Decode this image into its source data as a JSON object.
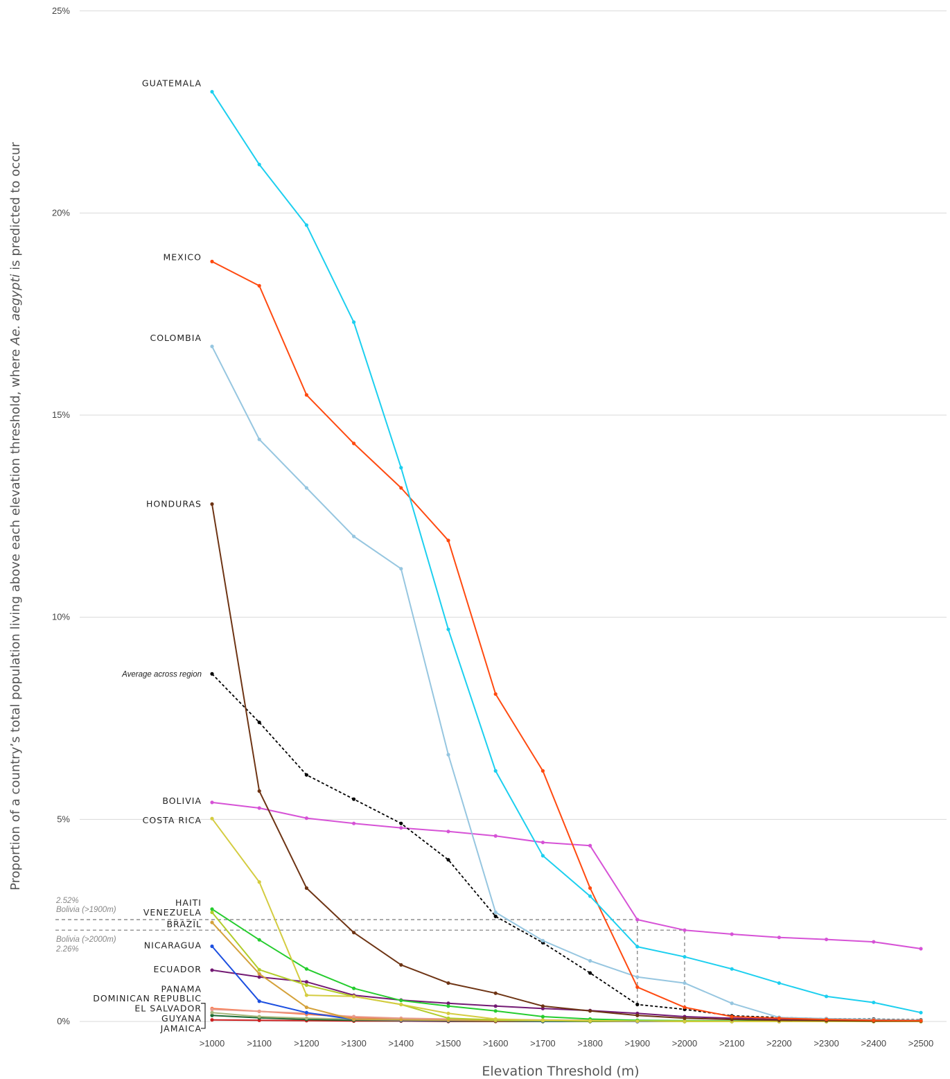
{
  "chart_data": {
    "type": "line",
    "ylabel_main": "Proportion of a country’s total population living above each elevation threshold, where ",
    "ylabel_italic": "Ae. aegypti",
    "ylabel_tail": " is predicted to occur",
    "xlabel": "Elevation Threshold (m)",
    "ylim": [
      0,
      25
    ],
    "yticks": [
      0,
      5,
      10,
      15,
      20,
      25
    ],
    "ytick_labels": [
      "0%",
      "5%",
      "10%",
      "15%",
      "20%",
      "25%"
    ],
    "grid": true,
    "categories": [
      ">1000",
      ">1100",
      ">1200",
      ">1300",
      ">1400",
      ">1500",
      ">1600",
      ">1700",
      ">1800",
      ">1900",
      ">2000",
      ">2100",
      ">2200",
      ">2300",
      ">2400",
      ">2500"
    ],
    "series": [
      {
        "name": "GUATEMALA",
        "color": "#1ccfef",
        "dashed": false,
        "label_pos": 23.2,
        "values": [
          23.0,
          21.2,
          19.7,
          17.3,
          13.7,
          9.7,
          6.2,
          4.1,
          3.1,
          1.85,
          1.6,
          1.3,
          0.95,
          0.62,
          0.47,
          0.22
        ]
      },
      {
        "name": "MEXICO",
        "color": "#ff4a10",
        "dashed": false,
        "label_pos": 18.9,
        "values": [
          18.8,
          18.2,
          15.5,
          14.3,
          13.2,
          11.9,
          8.1,
          6.2,
          3.3,
          0.85,
          0.35,
          0.12,
          0.08,
          0.05,
          0.03,
          0.02
        ]
      },
      {
        "name": "COLOMBIA",
        "color": "#96c6e0",
        "dashed": false,
        "label_pos": 16.9,
        "values": [
          16.7,
          14.4,
          13.2,
          12.0,
          11.2,
          6.6,
          2.7,
          2.0,
          1.5,
          1.1,
          0.95,
          0.45,
          0.1,
          0.07,
          0.05,
          0.03
        ]
      },
      {
        "name": "HONDURAS",
        "color": "#6e3414",
        "dashed": false,
        "label_pos": 12.8,
        "values": [
          12.8,
          5.7,
          3.3,
          2.2,
          1.4,
          0.95,
          0.7,
          0.38,
          0.26,
          0.15,
          0.08,
          0.05,
          0.03,
          0.02,
          0.01,
          0.01
        ]
      },
      {
        "name": "Average across region",
        "color": "#000000",
        "dashed": true,
        "label_pos": 8.6,
        "values": [
          8.6,
          7.4,
          6.1,
          5.5,
          4.9,
          4.0,
          2.6,
          1.95,
          1.2,
          0.42,
          0.3,
          0.14,
          0.1,
          0.07,
          0.06,
          0.04
        ]
      },
      {
        "name": "BOLIVIA",
        "color": "#d652d6",
        "dashed": false,
        "label_pos": 5.45,
        "values": [
          5.42,
          5.28,
          5.03,
          4.9,
          4.79,
          4.7,
          4.59,
          4.43,
          4.35,
          2.52,
          2.26,
          2.16,
          2.08,
          2.03,
          1.97,
          1.8
        ]
      },
      {
        "name": "COSTA RICA",
        "color": "#d4cc40",
        "dashed": false,
        "label_pos": 4.97,
        "values": [
          5.02,
          3.45,
          0.65,
          0.62,
          0.42,
          0.2,
          0.06,
          0.03,
          0.02,
          0.01,
          0.01,
          0.0,
          0.0,
          0.0,
          0.0,
          0.0
        ]
      },
      {
        "name": "HAITI",
        "color": "#25cc2e",
        "dashed": false,
        "label_pos": 2.93,
        "values": [
          2.78,
          2.02,
          1.3,
          0.82,
          0.52,
          0.38,
          0.26,
          0.12,
          0.06,
          0.03,
          0.02,
          0.01,
          0.01,
          0.0,
          0.0,
          0.0
        ]
      },
      {
        "name": "VENEZUELA",
        "color": "#b2cc2a",
        "dashed": false,
        "label_pos": 2.69,
        "values": [
          2.7,
          1.28,
          0.9,
          0.62,
          0.42,
          0.08,
          0.04,
          0.02,
          0.01,
          0.01,
          0.0,
          0.0,
          0.0,
          0.0,
          0.0,
          0.0
        ]
      },
      {
        "name": "BRAZIL",
        "color": "#d4a13a",
        "dashed": false,
        "label_pos": 2.4,
        "values": [
          2.45,
          1.18,
          0.35,
          0.05,
          0.04,
          0.03,
          0.02,
          0.02,
          0.01,
          0.01,
          0.0,
          0.0,
          0.0,
          0.0,
          0.0,
          0.0
        ]
      },
      {
        "name": "NICARAGUA",
        "color": "#1c4fe0",
        "dashed": false,
        "label_pos": 1.88,
        "values": [
          1.86,
          0.5,
          0.22,
          0.05,
          0.03,
          0.02,
          0.02,
          0.01,
          0.01,
          0.0,
          0.0,
          0.0,
          0.0,
          0.0,
          0.0,
          0.0
        ]
      },
      {
        "name": "ECUADOR",
        "color": "#731973",
        "dashed": false,
        "label_pos": 1.29,
        "values": [
          1.27,
          1.1,
          0.98,
          0.65,
          0.53,
          0.45,
          0.38,
          0.32,
          0.27,
          0.2,
          0.12,
          0.08,
          0.05,
          0.03,
          0.02,
          0.01
        ]
      },
      {
        "name": "PANAMA",
        "color": "#e89a8a",
        "dashed": false,
        "label_pos": 0.8,
        "values": [
          0.3,
          0.25,
          0.2,
          0.12,
          0.08,
          0.06,
          0.05,
          0.04,
          0.03,
          0.02,
          0.01,
          0.01,
          0.0,
          0.0,
          0.0,
          0.0
        ]
      },
      {
        "name": "DOMINICAN REPUBLIC",
        "color": "#a8b87c",
        "dashed": false,
        "label_pos": 0.57,
        "values": [
          0.22,
          0.12,
          0.08,
          0.06,
          0.05,
          0.04,
          0.03,
          0.02,
          0.01,
          0.01,
          0.0,
          0.0,
          0.0,
          0.0,
          0.0,
          0.0
        ]
      },
      {
        "name": "EL SALVADOR",
        "color": "#ff6e3a",
        "dashed": false,
        "label_pos": 0.32,
        "values": [
          0.32,
          0.25,
          0.18,
          0.1,
          0.06,
          0.04,
          0.03,
          0.02,
          0.01,
          0.0,
          0.0,
          0.0,
          0.0,
          0.0,
          0.0,
          0.0
        ]
      },
      {
        "name": "GUYANA",
        "color": "#1c6b34",
        "dashed": false,
        "label_pos": 0.07,
        "values": [
          0.15,
          0.09,
          0.05,
          0.03,
          0.02,
          0.01,
          0.01,
          0.0,
          0.0,
          0.0,
          0.0,
          0.0,
          0.0,
          0.0,
          0.0,
          0.0
        ]
      },
      {
        "name": "JAMAICA",
        "color": "#cc1f1f",
        "dashed": false,
        "label_pos": -0.18,
        "values": [
          0.04,
          0.03,
          0.02,
          0.01,
          0.01,
          0.0,
          0.0,
          0.0,
          0.0,
          0.0,
          0.0,
          0.0,
          0.0,
          0.0,
          0.0,
          0.0
        ]
      }
    ],
    "annotations": {
      "bolivia_1900_value": "2.52%",
      "bolivia_1900_label": "Bolivia (>1900m)",
      "bolivia_2000_label": "Bolivia (>2000m)",
      "bolivia_2000_value": "2.26%"
    }
  }
}
